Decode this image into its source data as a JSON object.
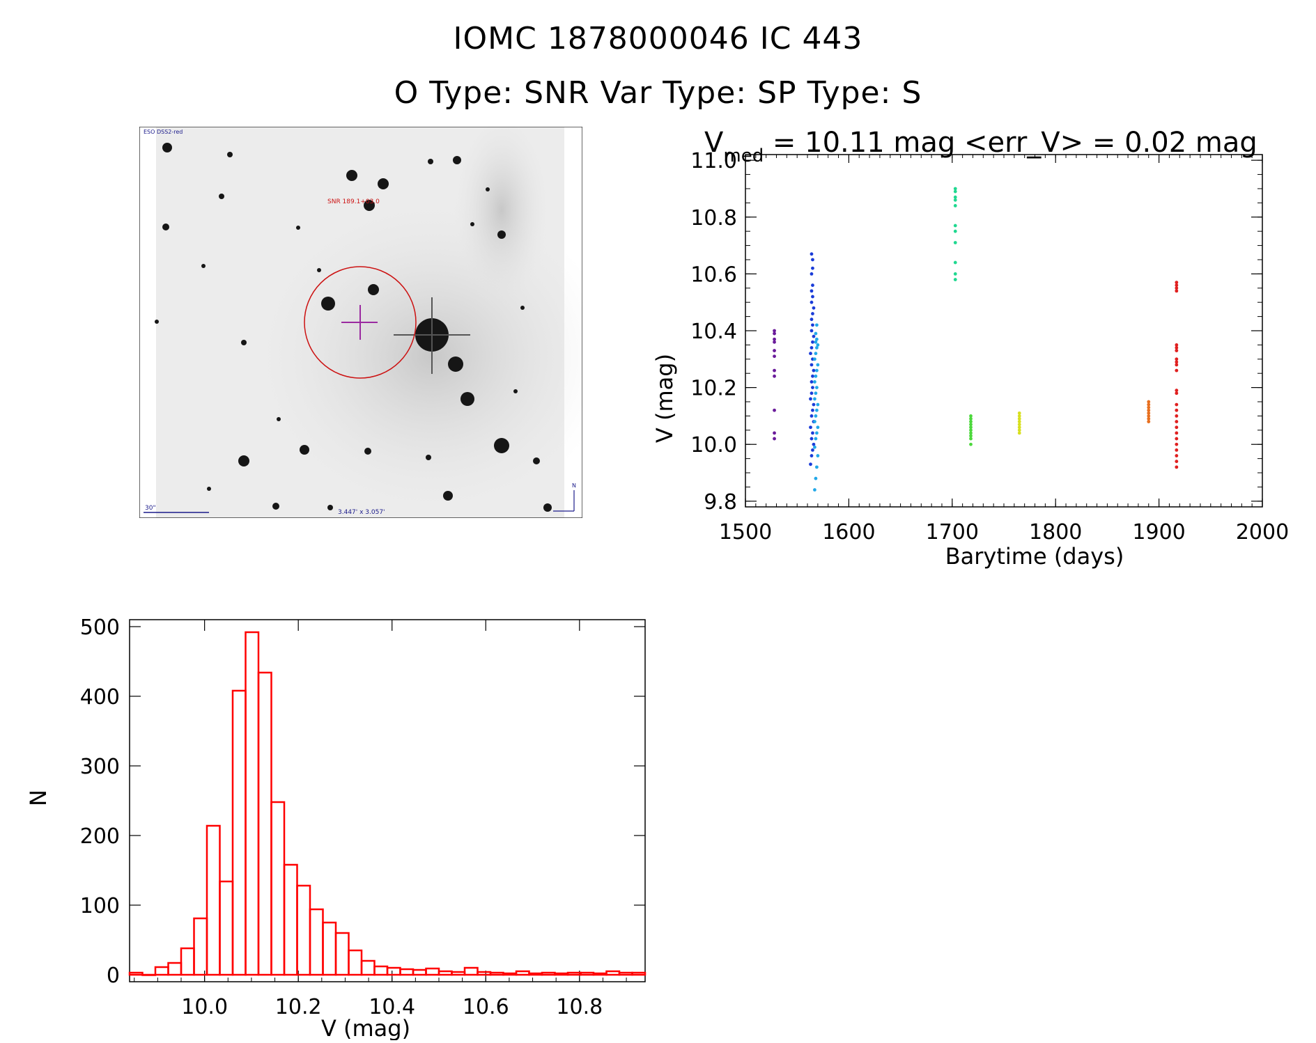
{
  "header": {
    "title_line1": "IOMC 1878000046    IC  443",
    "title_line2": "O Type: SNR  Var Type:    SP Type: S"
  },
  "image_panel": {
    "survey_label": "ESO DSS2-red",
    "object_label": "SNR 189.1+03.0",
    "scale_label": "30\"",
    "size_label": "3.447' x 3.057'",
    "north_label": "N"
  },
  "chart_data": [
    {
      "type": "scatter",
      "name": "light-curve",
      "title_prefix": "V",
      "title_sub": "med",
      "title_suffix": " = 10.11 mag <err_V> = 0.02 mag",
      "xlabel": "Barytime (days)",
      "ylabel": "V (mag)",
      "xlim": [
        1500,
        2000
      ],
      "ylim": [
        11.02,
        9.78
      ],
      "xticks": [
        1500,
        1600,
        1700,
        1800,
        1900,
        2000
      ],
      "yticks": [
        9.8,
        10.0,
        10.2,
        10.4,
        10.6,
        10.8,
        11.0
      ],
      "series": [
        {
          "name": "epoch-1528",
          "color": "#6a1b9a",
          "x": [
            1528,
            1528,
            1528,
            1528,
            1528,
            1528,
            1528,
            1528,
            1528,
            1528,
            1528
          ],
          "y": [
            10.02,
            10.04,
            10.12,
            10.24,
            10.26,
            10.31,
            10.33,
            10.36,
            10.37,
            10.39,
            10.4
          ]
        },
        {
          "name": "epoch-1565a",
          "color": "#1a3cd8",
          "x": [
            1563,
            1564,
            1565,
            1566,
            1564,
            1565,
            1563,
            1566,
            1564,
            1565,
            1566,
            1563,
            1564,
            1565,
            1564,
            1565,
            1566,
            1564,
            1565,
            1563,
            1564,
            1565,
            1566,
            1564,
            1565,
            1564,
            1565,
            1566,
            1564,
            1565,
            1564,
            1565,
            1564,
            1565,
            1565,
            1564
          ],
          "y": [
            9.93,
            9.96,
            9.98,
            10.0,
            10.02,
            10.04,
            10.06,
            10.08,
            10.1,
            10.12,
            10.14,
            10.16,
            10.18,
            10.2,
            10.22,
            10.24,
            10.26,
            10.28,
            10.3,
            10.32,
            10.34,
            10.36,
            10.38,
            10.4,
            10.42,
            10.44,
            10.46,
            10.48,
            10.5,
            10.52,
            10.54,
            10.56,
            10.6,
            10.62,
            10.65,
            10.67
          ]
        },
        {
          "name": "epoch-1565b",
          "color": "#22a8e8",
          "x": [
            1567,
            1568,
            1569,
            1570,
            1567,
            1568,
            1569,
            1570,
            1567,
            1568,
            1569,
            1570,
            1567,
            1568,
            1569,
            1567,
            1568,
            1569,
            1570,
            1567,
            1568,
            1569,
            1570,
            1568,
            1569,
            1568,
            1569
          ],
          "y": [
            9.84,
            9.88,
            9.92,
            9.96,
            9.99,
            10.02,
            10.04,
            10.06,
            10.08,
            10.1,
            10.12,
            10.14,
            10.16,
            10.18,
            10.2,
            10.22,
            10.24,
            10.26,
            10.28,
            10.3,
            10.32,
            10.34,
            10.35,
            10.36,
            10.37,
            10.39,
            10.42
          ]
        },
        {
          "name": "epoch-1703",
          "color": "#20d890",
          "x": [
            1703,
            1703,
            1703,
            1703,
            1703,
            1703,
            1703,
            1703,
            1703,
            1703,
            1703
          ],
          "y": [
            10.58,
            10.6,
            10.64,
            10.71,
            10.75,
            10.77,
            10.84,
            10.86,
            10.87,
            10.89,
            10.9
          ]
        },
        {
          "name": "epoch-1718",
          "color": "#4cd83c",
          "x": [
            1718,
            1718,
            1718,
            1718,
            1718,
            1718,
            1718,
            1718,
            1718,
            1718
          ],
          "y": [
            10.0,
            10.02,
            10.03,
            10.04,
            10.05,
            10.06,
            10.07,
            10.08,
            10.09,
            10.1
          ]
        },
        {
          "name": "epoch-1765",
          "color": "#d8e020",
          "x": [
            1765,
            1765,
            1765,
            1765,
            1765,
            1765,
            1765,
            1765
          ],
          "y": [
            10.04,
            10.05,
            10.06,
            10.07,
            10.08,
            10.09,
            10.1,
            10.11
          ]
        },
        {
          "name": "epoch-1890",
          "color": "#e87020",
          "x": [
            1890,
            1890,
            1890,
            1890,
            1890,
            1890,
            1890,
            1890
          ],
          "y": [
            10.08,
            10.09,
            10.1,
            10.11,
            10.12,
            10.13,
            10.14,
            10.15
          ]
        },
        {
          "name": "epoch-1917",
          "color": "#e02020",
          "x": [
            1917,
            1917,
            1917,
            1917,
            1917,
            1917,
            1917,
            1917,
            1917,
            1917,
            1917,
            1917,
            1917,
            1917,
            1917,
            1917,
            1917,
            1917,
            1917,
            1917,
            1917,
            1917,
            1917,
            1917,
            1917
          ],
          "y": [
            9.92,
            9.94,
            9.96,
            9.98,
            10.0,
            10.02,
            10.04,
            10.06,
            10.08,
            10.1,
            10.12,
            10.14,
            10.18,
            10.19,
            10.26,
            10.28,
            10.29,
            10.3,
            10.33,
            10.34,
            10.35,
            10.54,
            10.55,
            10.56,
            10.57
          ]
        }
      ]
    },
    {
      "type": "bar",
      "name": "histogram",
      "xlabel": "V (mag)",
      "ylabel": "N",
      "xlim": [
        9.84,
        10.94
      ],
      "ylim": [
        -10,
        510
      ],
      "xticks": [
        10.0,
        10.2,
        10.4,
        10.6,
        10.8
      ],
      "xtick_labels": [
        "10.0",
        "10.2",
        "10.4",
        "10.6",
        "10.8"
      ],
      "yticks": [
        0,
        100,
        200,
        300,
        400,
        500
      ],
      "bin_start": 9.84,
      "bin_width": 0.0275,
      "values": [
        3,
        0,
        11,
        17,
        38,
        81,
        214,
        134,
        408,
        492,
        434,
        248,
        158,
        128,
        94,
        75,
        60,
        35,
        20,
        12,
        10,
        8,
        7,
        9,
        5,
        4,
        10,
        4,
        3,
        2,
        5,
        2,
        3,
        2,
        3,
        3,
        2,
        5,
        3,
        3
      ],
      "color": "#ff0000"
    }
  ]
}
